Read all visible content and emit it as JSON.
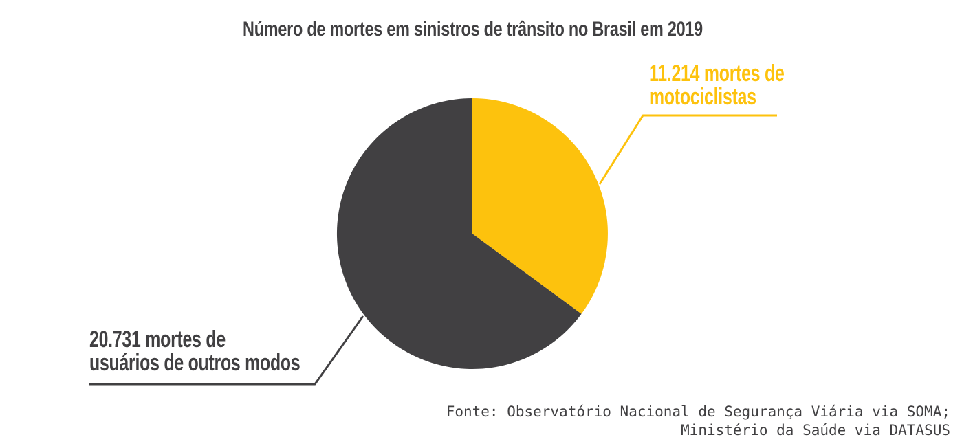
{
  "page": {
    "background": "#FFFFFF"
  },
  "chart_data": {
    "type": "pie",
    "title": "Número de mortes em sinistros de trânsito no Brasil em 2019",
    "slices": [
      {
        "name": "motociclistas",
        "label": "mortes de motociclistas",
        "value": 11214,
        "display_value": "11.214",
        "color": "#FDC20D"
      },
      {
        "name": "usuarios-de-outros-modos",
        "label": "mortes de usuários de outros modos",
        "value": 20731,
        "display_value": "20.731",
        "color": "#414042"
      }
    ],
    "start_angle_deg": 0,
    "direction": "clockwise",
    "labels_style": "external-callout-lines",
    "legend_position": "none",
    "source": "Fonte: Observatório Nacional de Segurança Viária via SOMA; Ministério da Saúde via DATASUS"
  },
  "callouts": {
    "motorcyclists": {
      "line1": "11.214 mortes de",
      "line2": "motociclistas"
    },
    "others": {
      "line1": "20.731 mortes de",
      "line2": "usuários de outros modos"
    }
  },
  "source": {
    "line1": "Fonte: Observatório Nacional de Segurança Viária via SOMA;",
    "line2": "Ministério da Saúde via DATASUS"
  },
  "colors": {
    "motorcyclists_accent": "#FDC20D",
    "others_accent": "#414042",
    "title_text": "#414042",
    "source_text": "#414042",
    "background": "#FFFFFF"
  }
}
